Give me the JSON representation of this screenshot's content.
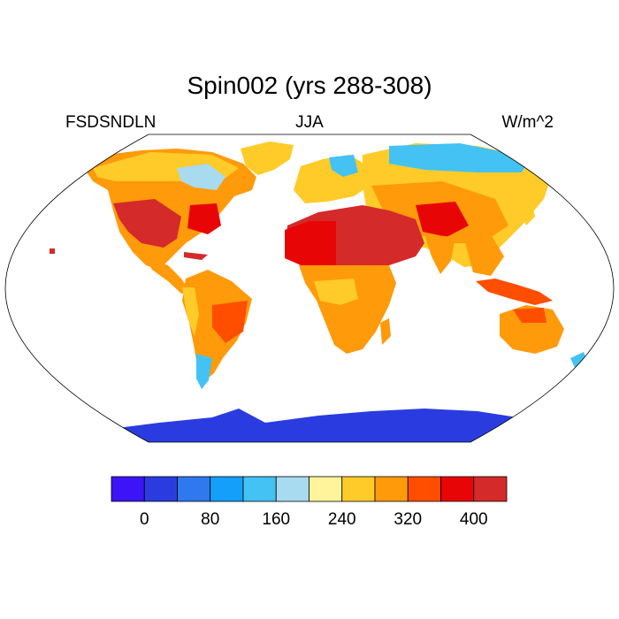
{
  "header": {
    "title": "Spin002 (yrs 288-308)",
    "variable": "FSDSNDLN",
    "season": "JJA",
    "units": "W/m^2"
  },
  "map": {
    "projection": "robinson",
    "ocean_color": "#ffffff",
    "antarctica_color": "#2a3ce0",
    "note": ""
  },
  "colorbar": {
    "colors": [
      "#3c14f5",
      "#2a3ce0",
      "#2f78ee",
      "#14a0fa",
      "#44c2f4",
      "#a8daf0",
      "#fff49c",
      "#ffcb28",
      "#ff9a0a",
      "#ff4e00",
      "#e80505",
      "#d42a2a"
    ],
    "labels": [
      "0",
      "80",
      "160",
      "240",
      "320",
      "400"
    ]
  }
}
